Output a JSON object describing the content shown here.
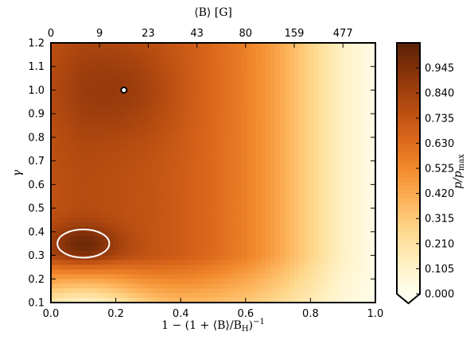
{
  "chart_data": {
    "type": "heatmap",
    "title": "",
    "xlabel": "1 − (1 + ⟨B⟩/B",
    "xlabel_sub": "H",
    "xlabel_sup": "−1",
    "x2label": "⟨B⟩ [G]",
    "ylabel": "γ",
    "colorbar_label": "p/p",
    "colorbar_label_sub": "max",
    "xlim": [
      0.0,
      1.0
    ],
    "ylim": [
      0.1,
      1.2
    ],
    "x_ticks": [
      0.0,
      0.2,
      0.4,
      0.6,
      0.8,
      1.0
    ],
    "x_tick_labels": [
      "0.0",
      "0.2",
      "0.4",
      "0.6",
      "0.8",
      "1.0"
    ],
    "y_ticks": [
      0.1,
      0.2,
      0.3,
      0.4,
      0.5,
      0.6,
      0.7,
      0.8,
      0.9,
      1.0,
      1.1,
      1.2
    ],
    "y_tick_labels": [
      "0.1",
      "0.2",
      "0.3",
      "0.4",
      "0.5",
      "0.6",
      "0.7",
      "0.8",
      "0.9",
      "1.0",
      "1.1",
      "1.2"
    ],
    "x2_tick_positions": [
      0.0,
      0.15,
      0.3,
      0.45,
      0.6,
      0.75,
      0.9
    ],
    "x2_tick_labels": [
      "0",
      "9",
      "23",
      "43",
      "80",
      "159",
      "477"
    ],
    "colorbar_ticks": [
      0.0,
      0.105,
      0.21,
      0.315,
      0.42,
      0.525,
      0.63,
      0.735,
      0.84,
      0.945
    ],
    "colorbar_tick_labels": [
      "0.000",
      "0.105",
      "0.210",
      "0.315",
      "0.420",
      "0.525",
      "0.630",
      "0.735",
      "0.840",
      "0.945"
    ],
    "colorbar_range": [
      0.0,
      1.05
    ],
    "colormap": [
      "#fffff0",
      "#fff0c2",
      "#fed98e",
      "#fdb35a",
      "#f28a2d",
      "#d9651a",
      "#b44a10",
      "#8a340b",
      "#5b2305"
    ],
    "probability_profile": {
      "x": [
        0.0,
        0.1,
        0.2,
        0.3,
        0.4,
        0.5,
        0.6,
        0.7,
        0.8,
        0.9,
        1.0
      ],
      "p": [
        0.75,
        0.78,
        0.76,
        0.74,
        0.7,
        0.64,
        0.56,
        0.44,
        0.28,
        0.12,
        0.03
      ]
    },
    "best_fit_point": {
      "x": 0.225,
      "y": 1.0,
      "marker": "white circle, black edge"
    },
    "contour_ellipse": {
      "cx": 0.1,
      "cy": 0.35,
      "rx": 0.08,
      "ry": 0.06,
      "color": "#ffffff"
    },
    "grid": false
  }
}
